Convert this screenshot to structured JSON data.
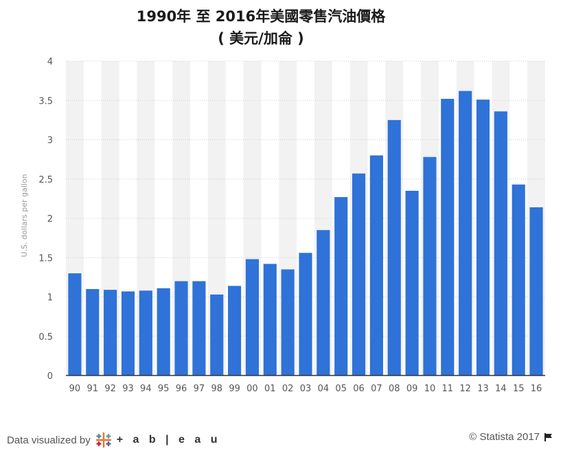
{
  "title_line1": "1990年 至 2016年美國零售汽油價格",
  "title_line2": "( 美元/加侖 )",
  "footer": {
    "left_text": "Data visualized by",
    "brand": "+ a b | e a u",
    "right_text": "© Statista 2017"
  },
  "colors": {
    "bar": "#2f72d8",
    "band": "#f2f2f2",
    "grid": "#cccccc",
    "axis": "#333333",
    "tick_text": "#555555"
  },
  "chart_data": {
    "type": "bar",
    "categories": [
      "90",
      "91",
      "92",
      "93",
      "94",
      "95",
      "96",
      "97",
      "98",
      "99",
      "00",
      "01",
      "02",
      "03",
      "04",
      "05",
      "06",
      "07",
      "08",
      "09",
      "10",
      "11",
      "12",
      "13",
      "14",
      "15",
      "16"
    ],
    "values": [
      1.3,
      1.1,
      1.09,
      1.07,
      1.08,
      1.11,
      1.2,
      1.2,
      1.03,
      1.14,
      1.48,
      1.42,
      1.35,
      1.56,
      1.85,
      2.27,
      2.57,
      2.8,
      3.25,
      2.35,
      2.78,
      3.52,
      3.62,
      3.51,
      3.36,
      2.43,
      2.14
    ],
    "ylabel": "U.S. dollars per gallon",
    "ylim": [
      0,
      4
    ],
    "yticks": [
      0,
      0.5,
      1,
      1.5,
      2,
      2.5,
      3,
      3.5,
      4
    ],
    "ytick_labels": [
      "0",
      "0.5",
      "1",
      "1.5",
      "2",
      "2.5",
      "3",
      "3.5",
      "4"
    ],
    "grid": true
  }
}
